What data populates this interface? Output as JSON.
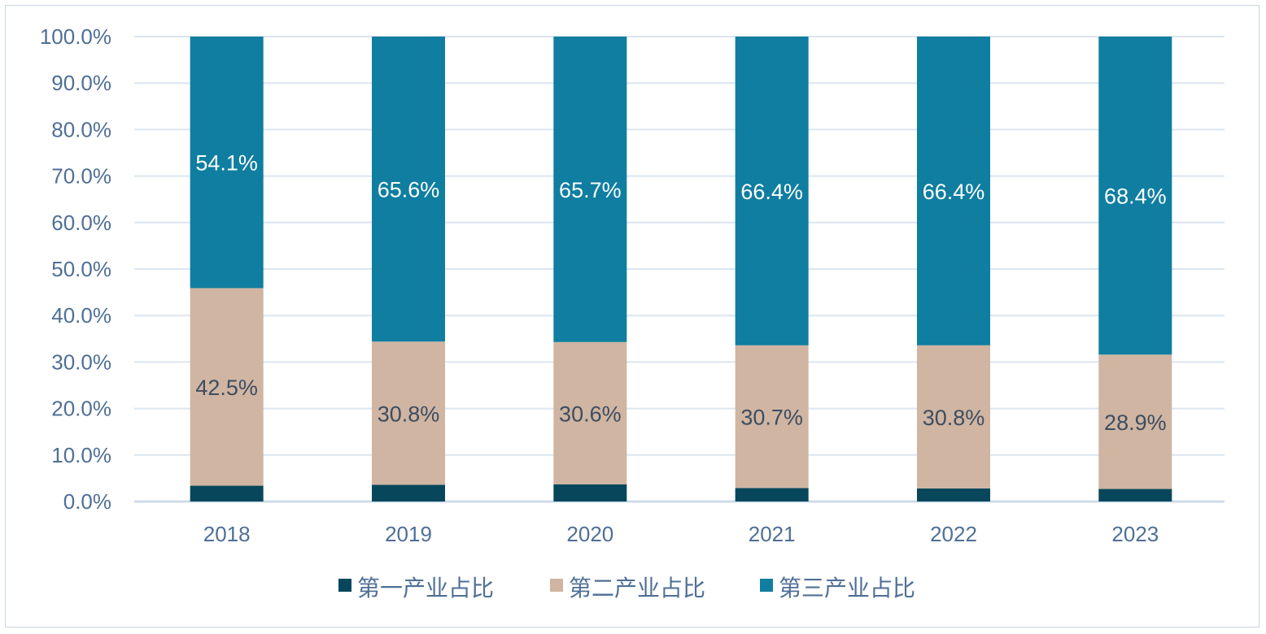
{
  "chart_data": {
    "type": "bar",
    "stacked": true,
    "title": "",
    "xlabel": "",
    "ylabel": "",
    "ylim": [
      0,
      100
    ],
    "y_ticks": [
      "0.0%",
      "10.0%",
      "20.0%",
      "30.0%",
      "40.0%",
      "50.0%",
      "60.0%",
      "70.0%",
      "80.0%",
      "90.0%",
      "100.0%"
    ],
    "grid": true,
    "legend_position": "bottom",
    "categories": [
      "2018",
      "2019",
      "2020",
      "2021",
      "2022",
      "2023"
    ],
    "series": [
      {
        "name": "第一产业占比",
        "color": "#08475b",
        "label_color": "#3e4d60",
        "values": [
          3.4,
          3.6,
          3.7,
          2.9,
          2.8,
          2.7
        ],
        "labels": [
          "3.4%",
          "3.6%",
          "3.7%",
          "2.9%",
          "2.8%",
          "2.7%"
        ]
      },
      {
        "name": "第二产业占比",
        "color": "#cfb5a2",
        "label_color": "#3e4d60",
        "values": [
          42.5,
          30.8,
          30.6,
          30.7,
          30.8,
          28.9
        ],
        "labels": [
          "42.5%",
          "30.8%",
          "30.6%",
          "30.7%",
          "30.8%",
          "28.9%"
        ]
      },
      {
        "name": "第三产业占比",
        "color": "#0f7ea0",
        "label_color": "#ffffff",
        "values": [
          54.1,
          65.6,
          65.7,
          66.4,
          66.4,
          68.4
        ],
        "labels": [
          "54.1%",
          "65.6%",
          "65.7%",
          "66.4%",
          "66.4%",
          "68.4%"
        ]
      }
    ]
  }
}
